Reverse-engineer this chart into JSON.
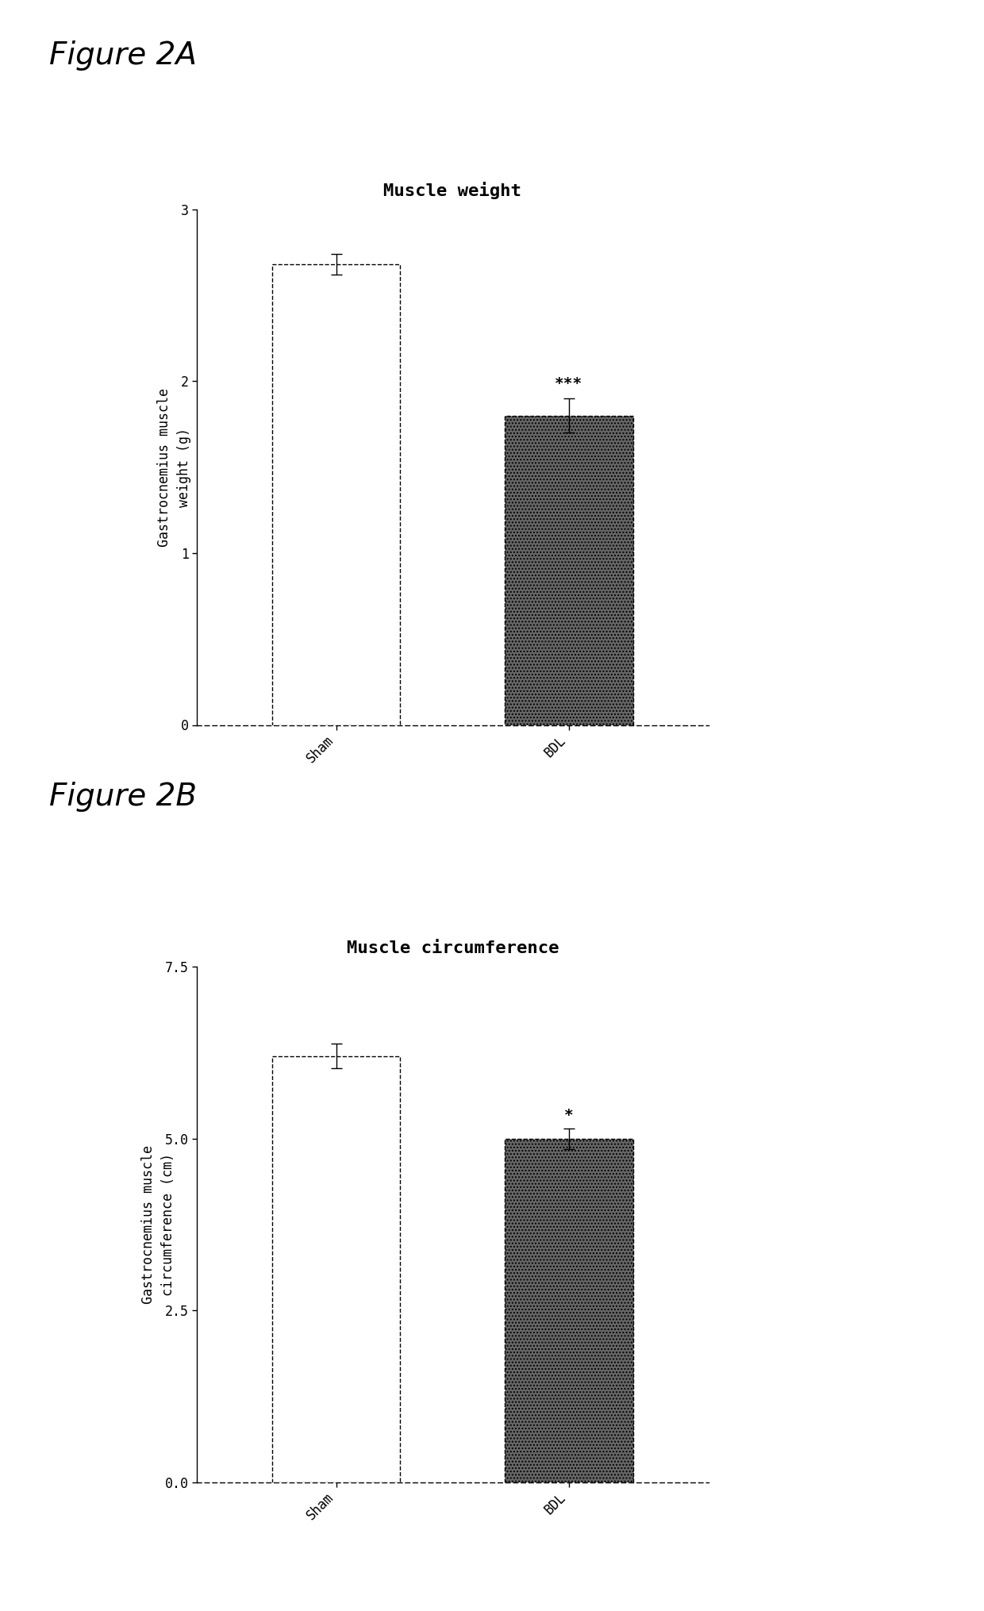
{
  "fig2a": {
    "title": "Muscle weight",
    "ylabel": "Gastrocnemius muscle\nweight (g)",
    "categories": [
      "Sham",
      "BDL"
    ],
    "values": [
      2.68,
      1.8
    ],
    "errors": [
      0.06,
      0.1
    ],
    "bar_colors": [
      "white",
      "#666666"
    ],
    "bar_edgecolors": [
      "black",
      "black"
    ],
    "sham_hatch": "",
    "bdl_hatch": "....",
    "ylim": [
      0,
      3
    ],
    "yticks": [
      0,
      1,
      2,
      3
    ],
    "significance": [
      "",
      "***"
    ],
    "dashed_border": true
  },
  "fig2b": {
    "title": "Muscle circumference",
    "ylabel": "Gastrocnemius muscle\ncircumference (cm)",
    "categories": [
      "Sham",
      "BDL"
    ],
    "values": [
      6.2,
      5.0
    ],
    "errors": [
      0.18,
      0.15
    ],
    "bar_colors": [
      "white",
      "#666666"
    ],
    "bar_edgecolors": [
      "black",
      "black"
    ],
    "sham_hatch": "",
    "bdl_hatch": "....",
    "ylim": [
      0.0,
      7.5
    ],
    "yticks": [
      0.0,
      2.5,
      5.0,
      7.5
    ],
    "significance": [
      "",
      "*"
    ],
    "dashed_border": true
  },
  "figure_label_a": "Figure 2A",
  "figure_label_b": "Figure 2B",
  "bg_color": "white",
  "title_fontsize": 16,
  "label_fontsize": 12,
  "tick_fontsize": 12,
  "figure_label_fontsize": 28,
  "sig_fontsize": 14
}
